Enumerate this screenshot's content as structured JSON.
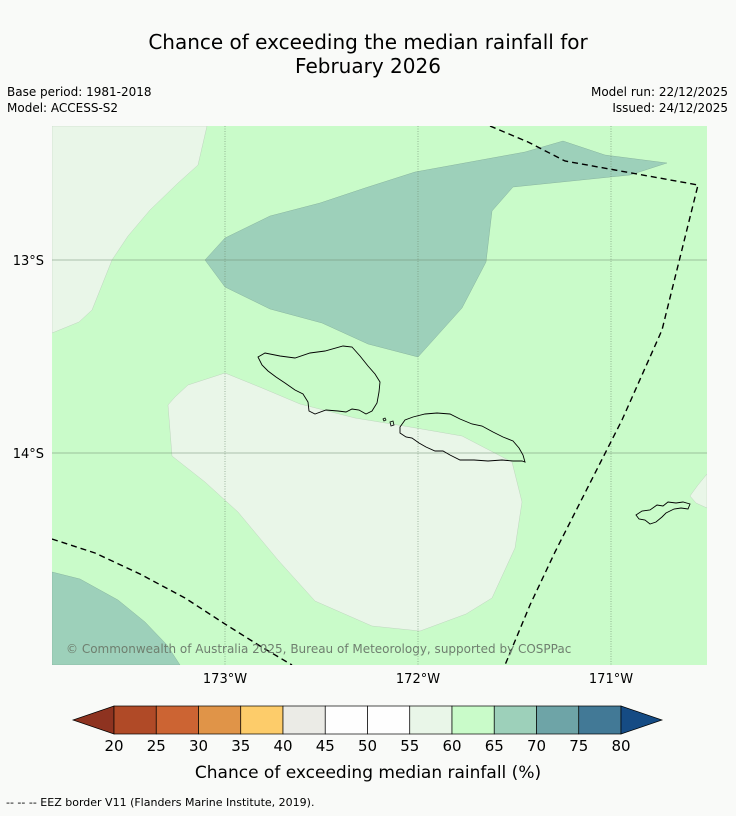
{
  "title": {
    "line1": "Chance of exceeding the median rainfall for",
    "line2": "February 2026"
  },
  "meta": {
    "base_period": "Base period: 1981-2018",
    "model": "Model: ACCESS-S2",
    "model_run": "Model run: 22/12/2025",
    "issued": "Issued: 24/12/2025"
  },
  "map": {
    "lat_labels": [
      "13°S",
      "14°S"
    ],
    "lon_labels": [
      "173°W",
      "172°W",
      "171°W"
    ],
    "copyright": "© Commonwealth of Australia 2025, Bureau of Meteorology, supported by COSPPac"
  },
  "colorbar": {
    "ticks": [
      "20",
      "25",
      "30",
      "35",
      "40",
      "45",
      "50",
      "55",
      "60",
      "65",
      "70",
      "75",
      "80"
    ],
    "colors": [
      "#b04a27",
      "#cc6433",
      "#e09448",
      "#fdcc6a",
      "#ebebe6",
      "#fefefe",
      "#fefefe",
      "#e9f6e8",
      "#c9fbc9",
      "#9dd0ba",
      "#6ea4a7",
      "#427996"
    ],
    "under_color": "#8e3320",
    "over_color": "#154b84",
    "label": "Chance of exceeding median rainfall (%)"
  },
  "footer": "--  --  -- EEZ border V11 (Flanders Marine Institute, 2019)."
}
